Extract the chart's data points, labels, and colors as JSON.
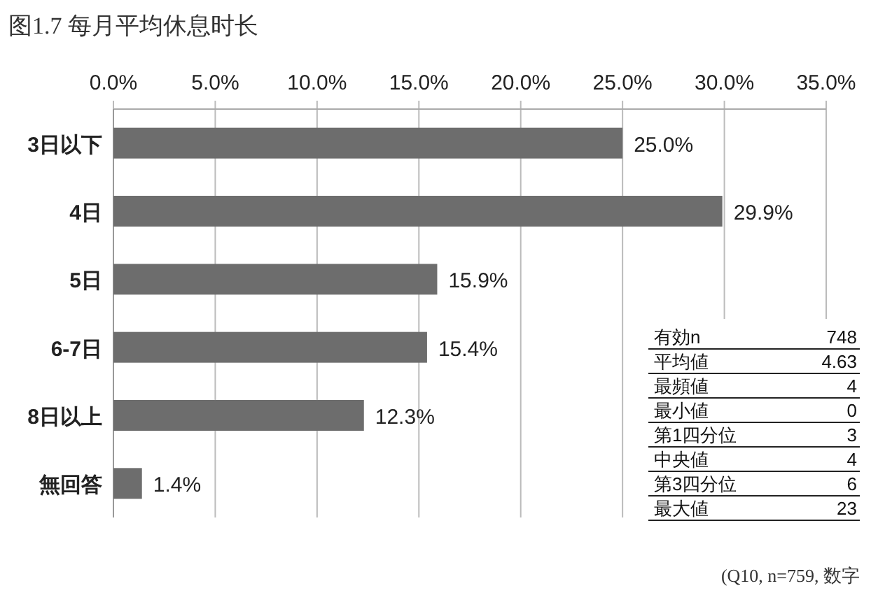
{
  "chart_data": {
    "type": "bar",
    "orientation": "horizontal",
    "title": "图1.7 每月平均休息时长",
    "categories": [
      "3日以下",
      "4日",
      "5日",
      "6-7日",
      "8日以上",
      "無回答"
    ],
    "values": [
      25.0,
      29.9,
      15.9,
      15.4,
      12.3,
      1.4
    ],
    "value_labels": [
      "25.0%",
      "29.9%",
      "15.9%",
      "15.4%",
      "12.3%",
      "1.4%"
    ],
    "color": "#6d6d6d",
    "xlim": [
      0,
      35
    ],
    "xticks": [
      {
        "value": 0,
        "label": "0.0%"
      },
      {
        "value": 5,
        "label": "5.0%"
      },
      {
        "value": 10,
        "label": "10.0%"
      },
      {
        "value": 15,
        "label": "15.0%"
      },
      {
        "value": 20,
        "label": "20.0%"
      },
      {
        "value": 25,
        "label": "25.0%"
      },
      {
        "value": 30,
        "label": "30.0%"
      },
      {
        "value": 35,
        "label": "35.0%"
      }
    ],
    "grid": "x",
    "annotations": [
      "有効n",
      "748",
      "平均値",
      "4.63",
      "最頻値",
      "4",
      "最小値",
      "0",
      "第1四分位",
      "3",
      "中央値",
      "4",
      "第3四分位",
      "6",
      "最大値",
      "23",
      "(Q10, n=759, 数字"
    ]
  }
}
